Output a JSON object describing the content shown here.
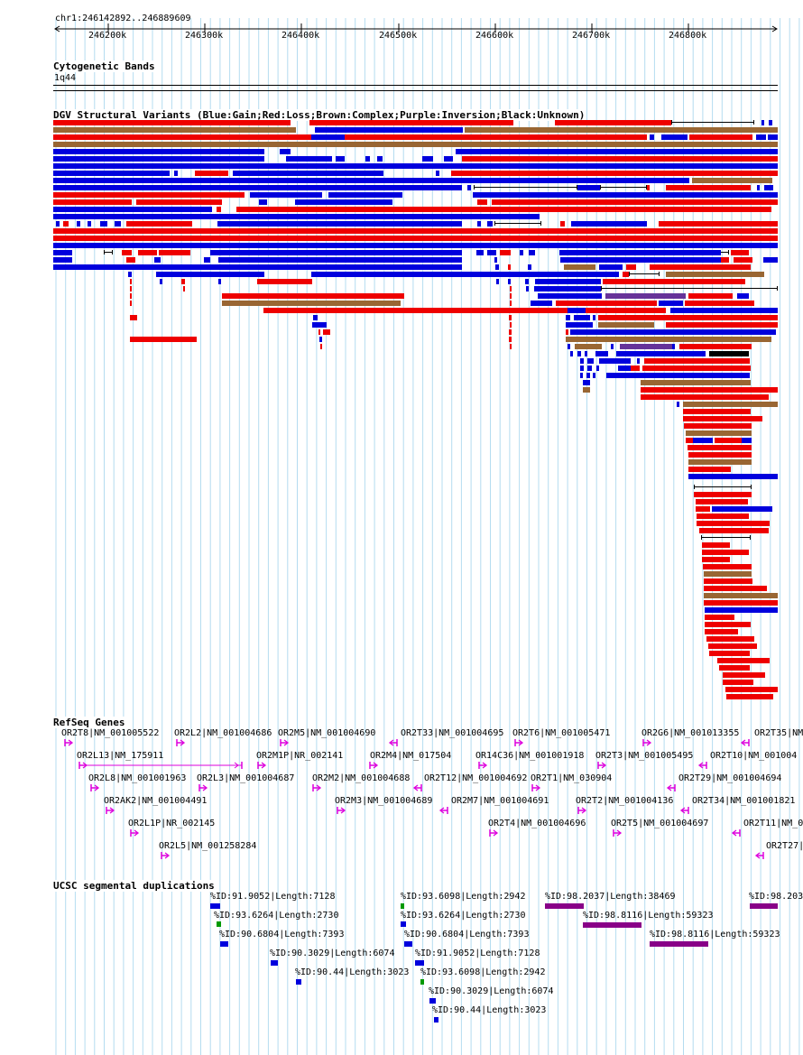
{
  "header": {
    "region": "chr1:246142892..246889609"
  },
  "ruler": {
    "ticks": [
      "246200k",
      "246300k",
      "246400k",
      "246500k",
      "246600k",
      "246700k",
      "246800k"
    ]
  },
  "cytobands": {
    "title": "Cytogenetic Bands",
    "band": "1q44"
  },
  "dgv": {
    "title": "DGV Structural Variants (Blue:Gain;Red:Loss;Brown:Complex;Purple:Inversion;Black:Unknown)",
    "colors": {
      "b": "#0000dd",
      "r": "#ee0000",
      "n": "#996633",
      "p": "#663399",
      "k": "#000000"
    }
  },
  "refseq": {
    "title": "RefSeq Genes",
    "color": "#dd00dd",
    "genes": [
      {
        "label": "OR2T8|NM_001005522",
        "dir": "+"
      },
      {
        "label": "OR2L2|NM_001004686",
        "dir": "+"
      },
      {
        "label": "OR2M5|NM_001004690",
        "dir": "+"
      },
      {
        "label": "OR2T33|NM_001004695",
        "dir": "-"
      },
      {
        "label": "OR2T6|NM_001005471",
        "dir": "+"
      },
      {
        "label": "OR2G6|NM_001013355",
        "dir": "+"
      },
      {
        "label": "OR2T35|NM",
        "dir": "-"
      },
      {
        "label": "OR2L13|NM_175911",
        "dir": "+"
      },
      {
        "label": "OR2M1P|NR_002141",
        "dir": "+"
      },
      {
        "label": "OR2M4|NM_017504",
        "dir": "+"
      },
      {
        "label": "OR14C36|NM_001001918",
        "dir": "+"
      },
      {
        "label": "OR2T3|NM_001005495",
        "dir": "+"
      },
      {
        "label": "OR2T10|NM_001004",
        "dir": "-"
      },
      {
        "label": "OR2L8|NM_001001963",
        "dir": "+"
      },
      {
        "label": "OR2L3|NM_001004687",
        "dir": "+"
      },
      {
        "label": "OR2M2|NM_001004688",
        "dir": "+"
      },
      {
        "label": "OR2T12|NM_001004692",
        "dir": "-"
      },
      {
        "label": "OR2T1|NM_030904",
        "dir": "+"
      },
      {
        "label": "OR2T29|NM_001004694",
        "dir": "-"
      },
      {
        "label": "OR2AK2|NM_001004491",
        "dir": "+"
      },
      {
        "label": "OR2M3|NM_001004689",
        "dir": "+"
      },
      {
        "label": "OR2M7|NM_001004691",
        "dir": "-"
      },
      {
        "label": "OR2T2|NM_001004136",
        "dir": "+"
      },
      {
        "label": "OR2T34|NM_001001821",
        "dir": "-"
      },
      {
        "label": "OR2L1P|NR_002145",
        "dir": "+"
      },
      {
        "label": "OR2T4|NM_001004696",
        "dir": "+"
      },
      {
        "label": "OR2T5|NM_001004697",
        "dir": "+"
      },
      {
        "label": "OR2T11|NM_0",
        "dir": "-"
      },
      {
        "label": "OR2L5|NM_001258284",
        "dir": "+"
      },
      {
        "label": "OR2T27|",
        "dir": "-"
      }
    ]
  },
  "segdup": {
    "title": "UCSC segmental duplications",
    "colors": {
      "b": "#0000dd",
      "g": "#009900",
      "p": "#880088"
    },
    "items": [
      {
        "label": "%ID:91.9052|Length:7128",
        "color": "b"
      },
      {
        "label": "%ID:93.6264|Length:2730",
        "color": "g"
      },
      {
        "label": "%ID:90.6804|Length:7393",
        "color": "b"
      },
      {
        "label": "%ID:90.3029|Length:6074",
        "color": "b"
      },
      {
        "label": "%ID:90.44|Length:3023",
        "color": "b"
      },
      {
        "label": "%ID:93.6098|Length:2942",
        "color": "g"
      },
      {
        "label": "%ID:93.6264|Length:2730",
        "color": "b"
      },
      {
        "label": "%ID:90.6804|Length:7393",
        "color": "b"
      },
      {
        "label": "%ID:91.9052|Length:7128",
        "color": "b"
      },
      {
        "label": "%ID:93.6098|Length:2942",
        "color": "g"
      },
      {
        "label": "%ID:90.3029|Length:6074",
        "color": "b"
      },
      {
        "label": "%ID:90.44|Length:3023",
        "color": "b"
      },
      {
        "label": "%ID:98.2037|Length:38469",
        "color": "p"
      },
      {
        "label": "%ID:98.8116|Length:59323",
        "color": "p"
      },
      {
        "label": "%ID:98.8116|Length:59323",
        "color": "p"
      },
      {
        "label": "%ID:98.203",
        "color": "p"
      }
    ]
  }
}
